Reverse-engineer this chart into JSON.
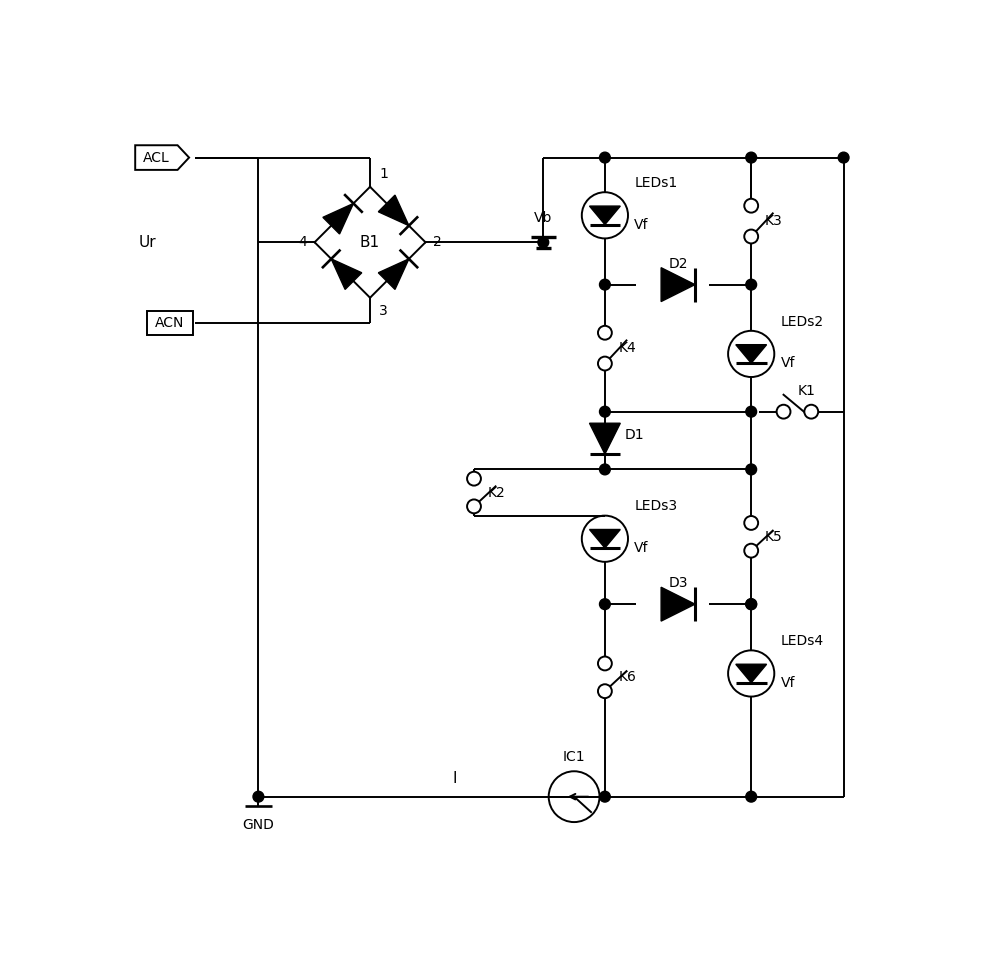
{
  "bg_color": "#ffffff",
  "line_color": "#000000",
  "lw": 1.4,
  "fig_width": 10.0,
  "fig_height": 9.73,
  "xlim": [
    0,
    10
  ],
  "ylim": [
    0,
    9.73
  ]
}
